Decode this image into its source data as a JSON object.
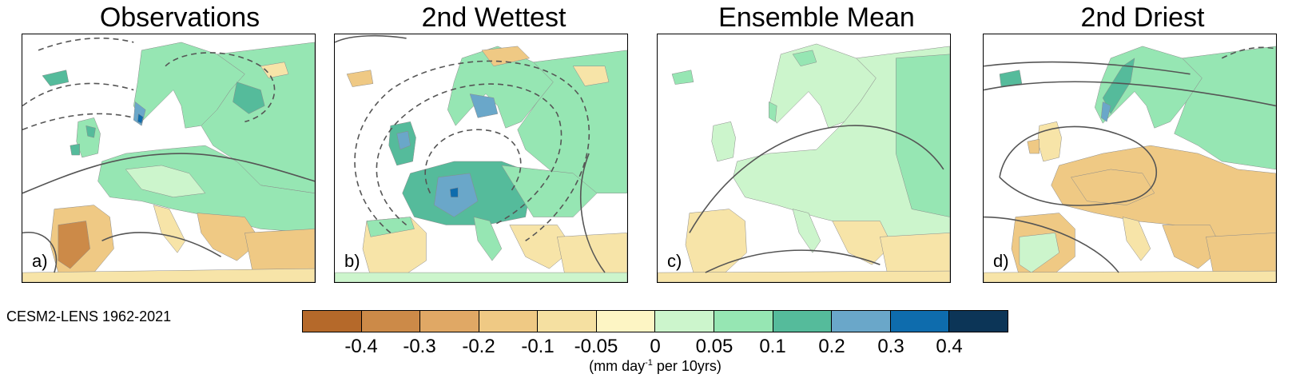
{
  "panels": [
    {
      "title": "Observations",
      "letter": "a)"
    },
    {
      "title": "2nd Wettest",
      "letter": "b)"
    },
    {
      "title": "Ensemble Mean",
      "letter": "c)"
    },
    {
      "title": "2nd Driest",
      "letter": "d)"
    }
  ],
  "source_label": "CESM2-LENS 1962-2021",
  "colorbar": {
    "ticks": [
      "-0.4",
      "-0.3",
      "-0.2",
      "-0.1",
      "-0.05",
      "0",
      "0.05",
      "0.1",
      "0.2",
      "0.3",
      "0.4"
    ],
    "colors": [
      "#b5692a",
      "#cc8a48",
      "#e0a865",
      "#efc984",
      "#f5e0a1",
      "#fdf5c4",
      "#ccf5cc",
      "#96e6b3",
      "#55bb9b",
      "#6aa7c9",
      "#0e6cad",
      "#0c3557"
    ],
    "units_prefix": "(mm day",
    "units_exp": "-1",
    "units_suffix": " per 10yrs)"
  },
  "map_colors": {
    "land_dry_strong": "#cc8a48",
    "land_dry": "#efc984",
    "land_dry_light": "#f7e4a8",
    "land_neutral_wet": "#ccf5cc",
    "land_wet": "#96e6b3",
    "land_wetter": "#55bb9b",
    "land_very_wet": "#6aa7c9",
    "land_extreme_wet": "#0e6cad",
    "sea": "#ffffff",
    "border": "#8a8a8a",
    "contour": "#555555"
  }
}
